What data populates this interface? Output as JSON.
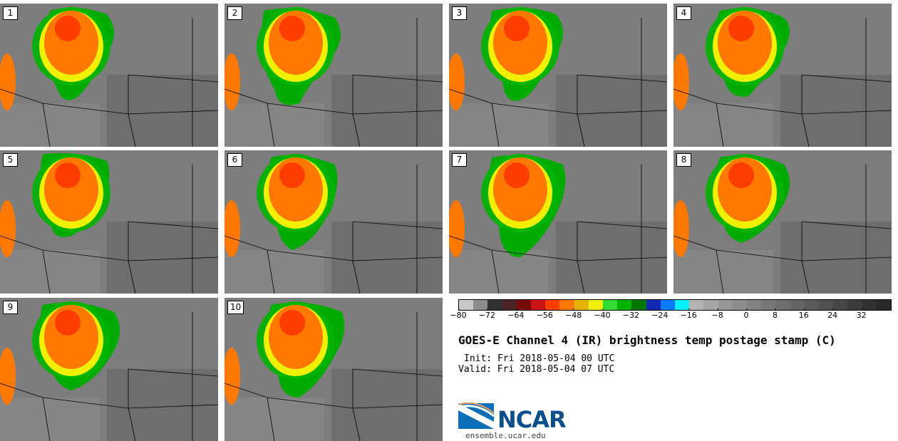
{
  "panels": [
    {
      "label": "1"
    },
    {
      "label": "2"
    },
    {
      "label": "3"
    },
    {
      "label": "4"
    },
    {
      "label": "5"
    },
    {
      "label": "6"
    },
    {
      "label": "7"
    },
    {
      "label": "8"
    },
    {
      "label": "9"
    },
    {
      "label": "10"
    }
  ],
  "colorbar": {
    "colors": [
      "#c8c8c8",
      "#8c8c8c",
      "#323232",
      "#4b2323",
      "#780a0a",
      "#c81414",
      "#ff3c00",
      "#ff7800",
      "#e6b400",
      "#f0f000",
      "#32dc32",
      "#00b400",
      "#007800",
      "#1428b4",
      "#0a78ff",
      "#00f0ff",
      "#b4b4b4",
      "#a5a5a5",
      "#969696",
      "#8c8c8c",
      "#828282",
      "#787878",
      "#6e6e6e",
      "#646464",
      "#5a5a5a",
      "#505050",
      "#464646",
      "#3c3c3c",
      "#323232",
      "#282828"
    ],
    "ticks": [
      "−80",
      "−72",
      "−64",
      "−56",
      "−48",
      "−40",
      "−32",
      "−24",
      "−16",
      "−8",
      "0",
      "8",
      "16",
      "24",
      "32"
    ]
  },
  "title": "GOES-E Channel 4 (IR) brightness temp postage stamp (C)",
  "init": "Init: Fri 2018-05-04 00 UTC",
  "valid": "Valid: Fri 2018-05-04 07 UTC",
  "logo_text": "NCAR",
  "url": "ensemble.ucar.edu"
}
